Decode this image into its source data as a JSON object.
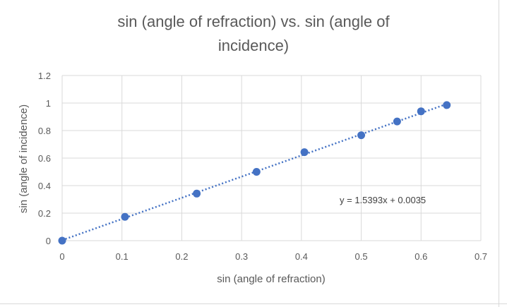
{
  "chart_data": {
    "type": "scatter",
    "title_line1": "sin (angle of refraction) vs. sin (angle of",
    "title_line2": "incidence)",
    "xlabel": "sin (angle of refraction)",
    "ylabel": "sin (angle of incidence)",
    "xlim": [
      0,
      0.7
    ],
    "ylim": [
      0,
      1.2
    ],
    "x_ticks": [
      "0",
      "0.1",
      "0.2",
      "0.3",
      "0.4",
      "0.5",
      "0.6",
      "0.7"
    ],
    "y_ticks": [
      "0",
      "0.2",
      "0.4",
      "0.6",
      "0.8",
      "1",
      "1.2"
    ],
    "grid": true,
    "series": [
      {
        "x": [
          0,
          0.105,
          0.225,
          0.325,
          0.405,
          0.5,
          0.56,
          0.6,
          0.643
        ],
        "y": [
          0,
          0.173,
          0.342,
          0.5,
          0.643,
          0.766,
          0.866,
          0.94,
          0.985
        ],
        "color": "#4472c4"
      }
    ],
    "trendline": {
      "type": "linear",
      "slope": 1.5393,
      "intercept": 0.0035,
      "equation": "y = 1.5393x + 0.0035",
      "style": "dotted",
      "color": "#4472c4"
    }
  }
}
